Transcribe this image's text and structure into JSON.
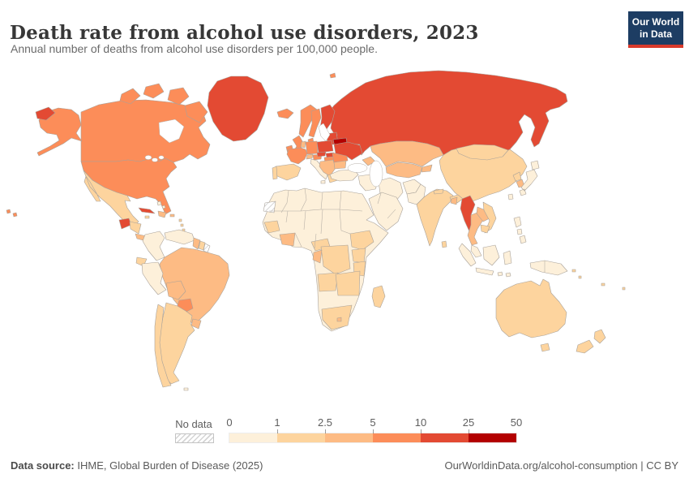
{
  "header": {
    "title": "Death rate from alcohol use disorders, 2023",
    "subtitle": "Annual number of deaths from alcohol use disorders per 100,000 people.",
    "logo": {
      "line1": "Our World",
      "line2": "in Data",
      "bg_color": "#1d3d63",
      "accent_color": "#d93a2b"
    }
  },
  "legend": {
    "no_data_label": "No data",
    "ticks": [
      "0",
      "1",
      "2.5",
      "5",
      "10",
      "25",
      "50"
    ],
    "bin_colors": [
      "#FDF0DA",
      "#FDD49E",
      "#FDBB84",
      "#FC8D59",
      "#E34A33",
      "#B30000"
    ]
  },
  "footer": {
    "source_label": "Data source:",
    "source_text": " IHME, Global Burden of Disease (2025)",
    "credit": "OurWorldinData.org/alcohol-consumption | CC BY"
  },
  "chart_data": {
    "type": "heatmap",
    "subtype": "world-choropleth",
    "title": "Death rate from alcohol use disorders, 2023",
    "subtitle": "Annual number of deaths from alcohol use disorders per 100,000 people.",
    "unit": "deaths per 100,000 people",
    "year": 2023,
    "legend_position": "bottom",
    "bins": [
      {
        "label": "0–1",
        "color": "#FDF0DA"
      },
      {
        "label": "1–2.5",
        "color": "#FDD49E"
      },
      {
        "label": "2.5–5",
        "color": "#FDBB84"
      },
      {
        "label": "5–10",
        "color": "#FC8D59"
      },
      {
        "label": "10–25",
        "color": "#E34A33"
      },
      {
        "label": "25–50",
        "color": "#B30000"
      },
      {
        "label": "No data",
        "color": "hatched-white"
      }
    ],
    "regions": [
      {
        "country": "Belarus",
        "bin": "25–50"
      },
      {
        "country": "Russia",
        "bin": "10–25"
      },
      {
        "country": "Ukraine",
        "bin": "10–25"
      },
      {
        "country": "Poland",
        "bin": "10–25"
      },
      {
        "country": "Finland",
        "bin": "10–25"
      },
      {
        "country": "Estonia, Latvia, Lithuania",
        "bin": "10–25"
      },
      {
        "country": "Czechia",
        "bin": "10–25"
      },
      {
        "country": "Slovakia",
        "bin": "10–25"
      },
      {
        "country": "Greenland",
        "bin": "10–25"
      },
      {
        "country": "Cuba",
        "bin": "10–25"
      },
      {
        "country": "Guatemala",
        "bin": "10–25"
      },
      {
        "country": "Myanmar",
        "bin": "10–25"
      },
      {
        "country": "United States",
        "bin": "5–10"
      },
      {
        "country": "Canada",
        "bin": "5–10"
      },
      {
        "country": "Iceland",
        "bin": "5–10"
      },
      {
        "country": "Norway",
        "bin": "5–10"
      },
      {
        "country": "Sweden",
        "bin": "5–10"
      },
      {
        "country": "Denmark",
        "bin": "5–10"
      },
      {
        "country": "United Kingdom",
        "bin": "5–10"
      },
      {
        "country": "Ireland",
        "bin": "5–10"
      },
      {
        "country": "France",
        "bin": "5–10"
      },
      {
        "country": "Germany",
        "bin": "5–10"
      },
      {
        "country": "Austria",
        "bin": "5–10"
      },
      {
        "country": "Hungary",
        "bin": "5–10"
      },
      {
        "country": "Romania",
        "bin": "5–10"
      },
      {
        "country": "Paraguay",
        "bin": "5–10"
      },
      {
        "country": "Brazil",
        "bin": "2.5–5"
      },
      {
        "country": "Bolivia",
        "bin": "2.5–5"
      },
      {
        "country": "Uruguay",
        "bin": "2.5–5"
      },
      {
        "country": "Guyana",
        "bin": "2.5–5"
      },
      {
        "country": "Kazakhstan",
        "bin": "2.5–5"
      },
      {
        "country": "Turkmenistan / Uzbekistan",
        "bin": "2.5–5"
      },
      {
        "country": "Caucasus (Georgia, Armenia, Azerbaijan)",
        "bin": "2.5–5"
      },
      {
        "country": "Thailand",
        "bin": "2.5–5"
      },
      {
        "country": "Laos",
        "bin": "2.5–5"
      },
      {
        "country": "South Korea",
        "bin": "2.5–5"
      },
      {
        "country": "Balkans (Serbia, Croatia, Bosnia)",
        "bin": "2.5–5"
      },
      {
        "country": "Bulgaria",
        "bin": "2.5–5"
      },
      {
        "country": "Dominican Republic",
        "bin": "2.5–5"
      },
      {
        "country": "Panama / Costa Rica",
        "bin": "2.5–5"
      },
      {
        "country": "Ghana / Côte d'Ivoire",
        "bin": "2.5–5"
      },
      {
        "country": "Bangladesh",
        "bin": "2.5–5"
      },
      {
        "country": "Switzerland",
        "bin": "2.5–5"
      },
      {
        "country": "Netherlands / Belgium",
        "bin": "2.5–5"
      },
      {
        "country": "Mexico",
        "bin": "1–2.5"
      },
      {
        "country": "Argentina",
        "bin": "1–2.5"
      },
      {
        "country": "Chile",
        "bin": "1–2.5"
      },
      {
        "country": "Ecuador",
        "bin": "1–2.5"
      },
      {
        "country": "Spain",
        "bin": "1–2.5"
      },
      {
        "country": "Portugal",
        "bin": "1–2.5"
      },
      {
        "country": "Greece",
        "bin": "1–2.5"
      },
      {
        "country": "India",
        "bin": "1–2.5"
      },
      {
        "country": "Nepal",
        "bin": "1–2.5"
      },
      {
        "country": "Sri Lanka",
        "bin": "1–2.5"
      },
      {
        "country": "China",
        "bin": "1–2.5"
      },
      {
        "country": "Mongolia",
        "bin": "1–2.5"
      },
      {
        "country": "Vietnam",
        "bin": "1–2.5"
      },
      {
        "country": "Cambodia",
        "bin": "1–2.5"
      },
      {
        "country": "Australia",
        "bin": "1–2.5"
      },
      {
        "country": "New Zealand",
        "bin": "1–2.5"
      },
      {
        "country": "Madagascar",
        "bin": "1–2.5"
      },
      {
        "country": "South Africa",
        "bin": "1–2.5"
      },
      {
        "country": "Angola",
        "bin": "1–2.5"
      },
      {
        "country": "DR Congo",
        "bin": "1–2.5"
      },
      {
        "country": "Ethiopia",
        "bin": "1–2.5"
      },
      {
        "country": "Kenya / Uganda",
        "bin": "1–2.5"
      },
      {
        "country": "Tanzania",
        "bin": "1–2.5"
      },
      {
        "country": "Zambia / Zimbabwe / Mozambique",
        "bin": "1–2.5"
      },
      {
        "country": "Senegal / Guinea",
        "bin": "1–2.5"
      },
      {
        "country": "Cameroon",
        "bin": "1–2.5"
      },
      {
        "country": "Honduras / Nicaragua",
        "bin": "1–2.5"
      },
      {
        "country": "Suriname",
        "bin": "1–2.5"
      },
      {
        "country": "Italy",
        "bin": "0–1"
      },
      {
        "country": "Turkey",
        "bin": "0–1"
      },
      {
        "country": "Saudi Arabia",
        "bin": "0–1"
      },
      {
        "country": "Iran",
        "bin": "0–1"
      },
      {
        "country": "Iraq / Syria",
        "bin": "0–1"
      },
      {
        "country": "North Africa (Morocco, Algeria, Libya, Egypt, Sudan)",
        "bin": "0–1"
      },
      {
        "country": "Nigeria / Somalia / Namibia / Botswana",
        "bin": "0–1"
      },
      {
        "country": "Afghanistan",
        "bin": "0–1"
      },
      {
        "country": "Pakistan",
        "bin": "0–1"
      },
      {
        "country": "Japan",
        "bin": "0–1"
      },
      {
        "country": "Taiwan",
        "bin": "0–1"
      },
      {
        "country": "Philippines",
        "bin": "0–1"
      },
      {
        "country": "Indonesia",
        "bin": "0–1"
      },
      {
        "country": "Malaysia",
        "bin": "0–1"
      },
      {
        "country": "Papua New Guinea",
        "bin": "0–1"
      },
      {
        "country": "Colombia",
        "bin": "0–1"
      },
      {
        "country": "Venezuela",
        "bin": "0–1"
      },
      {
        "country": "Peru",
        "bin": "0–1"
      }
    ],
    "no_data_regions": [
      "Western Sahara",
      "French Guiana"
    ]
  },
  "map": {
    "regions": {
      "greenland": 4,
      "canada-arctic": 3,
      "alaska": 3,
      "russia-wrap": 4,
      "canada": 3,
      "usa": 3,
      "hawaii": 3,
      "mexico": 1,
      "guatemala": 4,
      "honduras-nicaragua": 1,
      "costa-rica-panama": 2,
      "cuba": 4,
      "jamaica": 1,
      "hispaniola": 2,
      "puerto-rico": 2,
      "bahamas": 0,
      "lesser-antilles": 1,
      "colombia": 0,
      "venezuela": 0,
      "guyana": 2,
      "suriname": 1,
      "french-guiana": null,
      "ecuador": 1,
      "peru": 0,
      "brazil": 2,
      "bolivia": 2,
      "paraguay": 3,
      "uruguay": 2,
      "argentina": 1,
      "chile": 1,
      "falkland": 0,
      "iceland": 3,
      "norway": 3,
      "sweden": 3,
      "finland": 4,
      "denmark": 3,
      "uk": 3,
      "ireland": 3,
      "baltic-states": 4,
      "belarus": 5,
      "poland": 4,
      "germany": 3,
      "netherlands-belgium": 2,
      "france": 3,
      "switzerland": 2,
      "austria": 3,
      "czechia": 4,
      "slovakia": 4,
      "hungary": 3,
      "spain": 1,
      "portugal": 1,
      "italy": 0,
      "balkans": 2,
      "greece": 1,
      "romania": 3,
      "bulgaria": 2,
      "ukraine": 4,
      "russia": 4,
      "kazakhstan": 2,
      "central-asia-south": 2,
      "kyrgyz-tajik": 2,
      "caucasus": 2,
      "turkey": 0,
      "syria-iraq": 0,
      "iran": 0,
      "arabia": 0,
      "afghanistan": 0,
      "pakistan": 0,
      "india": 1,
      "india-ne": 1,
      "bangladesh": 2,
      "nepal": 1,
      "sri-lanka": 1,
      "china": 1,
      "mongolia": 1,
      "north-korea": 1,
      "south-korea": 2,
      "japan": 0,
      "taiwan": 0,
      "myanmar": 4,
      "thailand": 2,
      "laos": 2,
      "vietnam": 1,
      "cambodia": 1,
      "malaysia": 0,
      "indonesia": 0,
      "philippines": 0,
      "new-guinea": 0,
      "pacific-islands": 1,
      "africa-mainland": 0,
      "western-sahara": null,
      "senegal-guinea": 1,
      "cote-ghana": 2,
      "cameroon-car": 1,
      "ethiopia": 1,
      "kenya-uganda": 1,
      "tanzania": 1,
      "drc": 1,
      "congo-gabon": 2,
      "angola": 1,
      "se-africa": 1,
      "south-africa": 1,
      "lesotho": 2,
      "madagascar": 1,
      "australia": 1,
      "tasmania": 1,
      "new-zealand": 1
    }
  }
}
